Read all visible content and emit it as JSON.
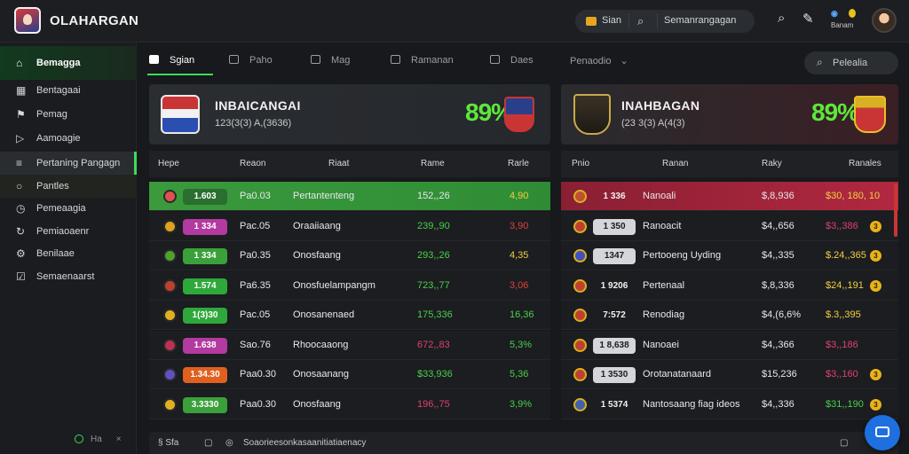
{
  "app": {
    "title": "OLAHARGAN"
  },
  "topbar": {
    "pill_label": "Sian",
    "search_label": "Semanrangagan",
    "badge_top": "ö",
    "badge_bottom": "Banam"
  },
  "sidebar": {
    "items": [
      {
        "label": "Bemagga",
        "icon": "home-icon"
      },
      {
        "label": "Bentagaai",
        "icon": "grid-icon"
      },
      {
        "label": "Pemag",
        "icon": "shield-icon"
      },
      {
        "label": "Aamoagie",
        "icon": "play-icon"
      },
      {
        "label": "Pertaning Pangagn",
        "icon": "stack-icon"
      },
      {
        "label": "Pantles",
        "icon": "circle-icon"
      },
      {
        "label": "Pemeaagia",
        "icon": "clock-icon"
      },
      {
        "label": "Pemiaoaenr",
        "icon": "refresh-icon"
      },
      {
        "label": "Benilaae",
        "icon": "gear-icon"
      },
      {
        "label": "Semaenaarst",
        "icon": "check-icon"
      }
    ],
    "footer": "Ha"
  },
  "tabs": [
    {
      "label": "Sgian"
    },
    {
      "label": "Paho"
    },
    {
      "label": "Mag"
    },
    {
      "label": "Ramanan"
    },
    {
      "label": "Daes"
    },
    {
      "label": "Penaodio"
    }
  ],
  "tab_search": "Pelealia",
  "home_team": {
    "name": "INBAICANGAI",
    "sub": "123(3(3)   A,(3636)",
    "score": "89%"
  },
  "away_team": {
    "name": "INAHBAGAN",
    "sub": "(23 3(3)   A(4(3)",
    "score": "89%"
  },
  "left_table": {
    "headers": [
      "Hepe",
      "Reaon",
      "Riaat",
      "Rame",
      "Rarle"
    ],
    "rows": [
      {
        "pill": "1.603",
        "pill_color": "#2e8b3a",
        "mini_color": "#e05050",
        "c1": "Pa0.03",
        "name": "Pertantenteng",
        "val": "152,,26",
        "val_color": "#e6e8ea",
        "pct": "4,90",
        "pct_color": "#f0d040"
      },
      {
        "pill": "1 334",
        "pill_color": "#b23aa0",
        "mini_color": "#e0a020",
        "c1": "Pac.05",
        "name": "Oraaiiaang",
        "val": "239,,90",
        "val_color": "#4ad04a",
        "pct": "3,90",
        "pct_color": "#e04040"
      },
      {
        "pill": "1 334",
        "pill_color": "#3aa03a",
        "mini_color": "#50a030",
        "c1": "Pa0.35",
        "name": "Onosfaang",
        "val": "293,,26",
        "val_color": "#4ad04a",
        "pct": "4,35",
        "pct_color": "#f0d040"
      },
      {
        "pill": "1.574",
        "pill_color": "#2ea83a",
        "mini_color": "#c04030",
        "c1": "Pa6.35",
        "name": "Onosfuelampangm",
        "val": "723,,77",
        "val_color": "#4ad04a",
        "pct": "3,06",
        "pct_color": "#e04040"
      },
      {
        "pill": "1(3)30",
        "pill_color": "#2ea83a",
        "mini_color": "#e0b020",
        "c1": "Pac.05",
        "name": "Onosanenaed",
        "val": "175,336",
        "val_color": "#4ad04a",
        "pct": "16,36",
        "pct_color": "#4ad04a"
      },
      {
        "pill": "1.638",
        "pill_color": "#b23aa0",
        "mini_color": "#c03050",
        "c1": "Sao.76",
        "name": "Rhoocaaong",
        "val": "672,,83",
        "val_color": "#e04070",
        "pct": "5,3%",
        "pct_color": "#4ad04a"
      },
      {
        "pill": "1.34.30",
        "pill_color": "#e06020",
        "mini_color": "#6050c0",
        "c1": "Paa0.30",
        "name": "Onosaanang",
        "val": "$33,936",
        "val_color": "#4ad04a",
        "pct": "5,36",
        "pct_color": "#4ad04a"
      },
      {
        "pill": "3.3330",
        "pill_color": "#3aa03a",
        "mini_color": "#e0b020",
        "c1": "Paa0.30",
        "name": "Onosfaang",
        "val": "196,,75",
        "val_color": "#e04070",
        "pct": "3,9%",
        "pct_color": "#4ad04a"
      }
    ]
  },
  "right_table": {
    "headers": [
      "Pnio",
      "Ranan",
      "Raky",
      "Ranales"
    ],
    "rows": [
      {
        "num": "1 336",
        "num_style": "none",
        "mini_color": "#c05030",
        "name": "Nanoali",
        "val": "$,8,936",
        "amt": "$30, 180, 10",
        "amt_color": "#f0d040",
        "coin": ""
      },
      {
        "num": "1 350",
        "num_style": "pill",
        "mini_color": "#c04030",
        "name": "Ranoacit",
        "val": "$4,,656",
        "amt": "$3,,386",
        "amt_color": "#e04070",
        "coin": "3"
      },
      {
        "num": "1347",
        "num_style": "pill",
        "mini_color": "#4050c0",
        "name": "Pertooeng Uyding",
        "val": "$4,,335",
        "amt": "$.24,,365",
        "amt_color": "#f0d040",
        "coin": "3"
      },
      {
        "num": "1 9206",
        "num_style": "none",
        "mini_color": "#c04030",
        "name": "Pertenaal",
        "val": "$,8,336",
        "amt": "$24,,191",
        "amt_color": "#f0d040",
        "coin": "3"
      },
      {
        "num": "7:572",
        "num_style": "none",
        "mini_color": "#c04030",
        "name": "Renodiag",
        "val": "$4,(6,6%",
        "amt": "$.3,,395",
        "amt_color": "#f0d040",
        "coin": ""
      },
      {
        "num": "1 8,638",
        "num_style": "pill",
        "mini_color": "#c04030",
        "name": "Nanoaei",
        "val": "$4,,366",
        "amt": "$3,,186",
        "amt_color": "#e04070",
        "coin": ""
      },
      {
        "num": "1 3530",
        "num_style": "pill",
        "mini_color": "#c04030",
        "name": "Orotanatanaard",
        "val": "$15,236",
        "amt": "$3,,160",
        "amt_color": "#e04070",
        "coin": "3"
      },
      {
        "num": "1 5374",
        "num_style": "none",
        "mini_color": "#4060b0",
        "name": "Nantosaang fiag ideos",
        "val": "$4,,336",
        "amt": "$31,,190",
        "amt_color": "#4ad04a",
        "coin": "3"
      }
    ]
  },
  "bottombar": {
    "left": "Sfa",
    "text": "Soaorieesonkasaanitiatiaenacy"
  }
}
